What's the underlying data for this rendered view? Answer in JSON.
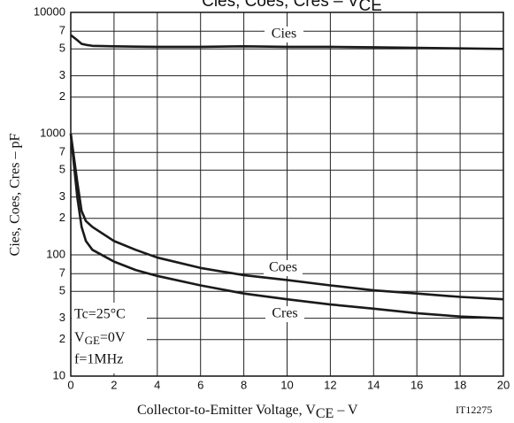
{
  "chart_data": {
    "type": "line",
    "title": "Cies,  Coes,  Cres  –  V",
    "title_sub": "CE",
    "x_label": "Collector-to-Emitter Voltage, V",
    "x_label_sub": "CE",
    "x_label_unit": " –  V",
    "code": "IT12275",
    "y_label": "Cies,  Coes,  Cres  –  pF",
    "annotations": {
      "tc": "Tc=25°C",
      "vge_v": "V",
      "vge_sub": "GE",
      "vge_val": "=0V",
      "f": "f=1MHz"
    },
    "log_y": true,
    "grid": true,
    "xlim": [
      0,
      20
    ],
    "xticks": [
      0,
      2,
      4,
      6,
      8,
      10,
      12,
      14,
      16,
      18,
      20
    ],
    "ylim": [
      10,
      10000
    ],
    "yticks": [
      10,
      {
        "value": 20,
        "label": "2"
      },
      {
        "value": 30,
        "label": "3"
      },
      {
        "value": 50,
        "label": "5"
      },
      {
        "value": 70,
        "label": "7"
      },
      100,
      {
        "value": 200,
        "label": "2"
      },
      {
        "value": 300,
        "label": "3"
      },
      {
        "value": 500,
        "label": "5"
      },
      {
        "value": 700,
        "label": "7"
      },
      1000,
      {
        "value": 2000,
        "label": "2"
      },
      {
        "value": 3000,
        "label": "3"
      },
      {
        "value": 5000,
        "label": "5"
      },
      {
        "value": 7000,
        "label": "7"
      },
      10000
    ],
    "x": [
      0,
      0.3,
      0.5,
      0.7,
      1,
      2,
      3,
      4,
      6,
      8,
      10,
      12,
      14,
      16,
      18,
      20
    ],
    "series": [
      {
        "name": "Cies",
        "color": "#1a1a1a",
        "values": [
          6500,
          5900,
          5500,
          5400,
          5300,
          5250,
          5220,
          5200,
          5200,
          5250,
          5200,
          5200,
          5150,
          5100,
          5050,
          5000
        ]
      },
      {
        "name": "Coes",
        "color": "#1a1a1a",
        "values": [
          1000,
          400,
          230,
          190,
          170,
          130,
          110,
          95,
          78,
          68,
          62,
          56,
          51,
          48,
          45,
          43
        ]
      },
      {
        "name": "Cres",
        "color": "#1a1a1a",
        "values": [
          1000,
          300,
          170,
          130,
          110,
          88,
          75,
          67,
          56,
          48,
          43,
          39,
          36,
          33,
          31,
          30
        ]
      }
    ]
  }
}
